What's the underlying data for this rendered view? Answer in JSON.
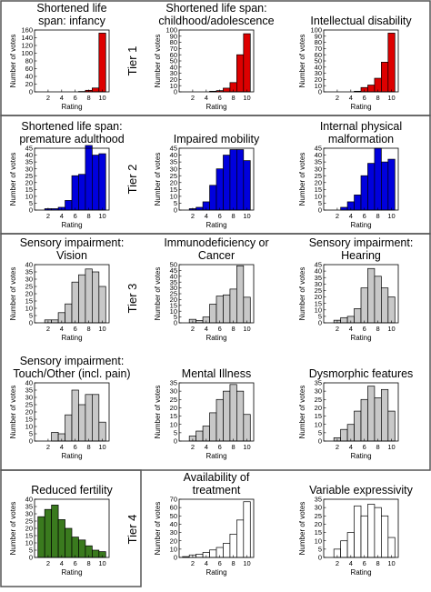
{
  "tiers": [
    "Tier 1",
    "Tier 2",
    "Tier 3",
    "Tier 4"
  ],
  "colors": {
    "tier1": "#dd0000",
    "tier2": "#0000dd",
    "tier3": "#c8c8c8",
    "tier4a": "#3a7a1e",
    "tier4b": "#ffffff",
    "frame": "#555555",
    "bar_stroke": "#000000"
  },
  "chart_data": [
    {
      "type": "bar",
      "title": "Shortened life\nspan: infancy",
      "xlabel": "Rating",
      "ylabel": "Number of votes",
      "ylim": [
        0,
        160
      ],
      "yticks": [
        0,
        20,
        40,
        60,
        80,
        100,
        120,
        140,
        160
      ],
      "xticks": [
        2,
        4,
        6,
        8,
        10
      ],
      "categories": [
        1,
        2,
        3,
        4,
        5,
        6,
        7,
        8,
        9,
        10
      ],
      "values": [
        0,
        0,
        0,
        0,
        0,
        0,
        1,
        4,
        10,
        152
      ],
      "color": "tier1"
    },
    {
      "type": "bar",
      "title": "Shortened life span:\nchildhood/adolescence",
      "xlabel": "Rating",
      "ylabel": "Number of votes",
      "ylim": [
        0,
        100
      ],
      "yticks": [
        0,
        10,
        20,
        30,
        40,
        50,
        60,
        70,
        80,
        90,
        100
      ],
      "xticks": [
        2,
        4,
        6,
        8,
        10
      ],
      "categories": [
        1,
        2,
        3,
        4,
        5,
        6,
        7,
        8,
        9,
        10
      ],
      "values": [
        0,
        0,
        0,
        0,
        1,
        2,
        6,
        15,
        60,
        94
      ],
      "color": "tier1"
    },
    {
      "type": "bar",
      "title": "Intellectual disability",
      "xlabel": "Rating",
      "ylabel": "Number of votes",
      "ylim": [
        0,
        100
      ],
      "yticks": [
        0,
        10,
        20,
        30,
        40,
        50,
        60,
        70,
        80,
        90,
        100
      ],
      "xticks": [
        2,
        4,
        6,
        8,
        10
      ],
      "categories": [
        1,
        2,
        3,
        4,
        5,
        6,
        7,
        8,
        9,
        10
      ],
      "values": [
        0,
        0,
        0,
        0,
        1,
        7,
        11,
        22,
        48,
        95
      ],
      "color": "tier1"
    },
    {
      "type": "bar",
      "title": "Shortened life span:\npremature adulthood",
      "xlabel": "Rating",
      "ylabel": "Number of votes",
      "ylim": [
        0,
        45
      ],
      "yticks": [
        0,
        5,
        10,
        15,
        20,
        25,
        30,
        35,
        40,
        45
      ],
      "xticks": [
        2,
        4,
        6,
        8,
        10
      ],
      "categories": [
        1,
        2,
        3,
        4,
        5,
        6,
        7,
        8,
        9,
        10
      ],
      "values": [
        0,
        1,
        1,
        2,
        7,
        25,
        26,
        47,
        40,
        41
      ],
      "color": "tier2"
    },
    {
      "type": "bar",
      "title": "Impaired mobility",
      "xlabel": "Rating",
      "ylabel": "Number of votes",
      "ylim": [
        0,
        45
      ],
      "yticks": [
        0,
        5,
        10,
        15,
        20,
        25,
        30,
        35,
        40,
        45
      ],
      "xticks": [
        2,
        4,
        6,
        8,
        10
      ],
      "categories": [
        1,
        2,
        3,
        4,
        5,
        6,
        7,
        8,
        9,
        10
      ],
      "values": [
        0,
        1,
        2,
        6,
        18,
        30,
        40,
        44,
        44,
        36
      ],
      "color": "tier2"
    },
    {
      "type": "bar",
      "title": "Internal physical\nmalformation",
      "xlabel": "Rating",
      "ylabel": "Number of votes",
      "ylim": [
        0,
        45
      ],
      "yticks": [
        0,
        5,
        10,
        15,
        20,
        25,
        30,
        35,
        40,
        45
      ],
      "xticks": [
        2,
        4,
        6,
        8,
        10
      ],
      "categories": [
        1,
        2,
        3,
        4,
        5,
        6,
        7,
        8,
        9,
        10
      ],
      "values": [
        0,
        0,
        2,
        6,
        11,
        25,
        34,
        45,
        35,
        37
      ],
      "color": "tier2"
    },
    {
      "type": "bar",
      "title": "Sensory impairment:\nVision",
      "xlabel": "Rating",
      "ylabel": "Number of votes",
      "ylim": [
        0,
        40
      ],
      "yticks": [
        0,
        5,
        10,
        15,
        20,
        25,
        30,
        35,
        40
      ],
      "xticks": [
        2,
        4,
        6,
        8,
        10
      ],
      "categories": [
        1,
        2,
        3,
        4,
        5,
        6,
        7,
        8,
        9,
        10
      ],
      "values": [
        0,
        2,
        2,
        7,
        13,
        28,
        33,
        37,
        35,
        25
      ],
      "color": "tier3"
    },
    {
      "type": "bar",
      "title": "Immunodeficiency or\nCancer",
      "xlabel": "Rating",
      "ylabel": "Number of votes",
      "ylim": [
        0,
        50
      ],
      "yticks": [
        0,
        5,
        10,
        15,
        20,
        25,
        30,
        35,
        40,
        45,
        50
      ],
      "xticks": [
        2,
        4,
        6,
        8,
        10
      ],
      "categories": [
        1,
        2,
        3,
        4,
        5,
        6,
        7,
        8,
        9,
        10
      ],
      "values": [
        0,
        3,
        2,
        5,
        16,
        23,
        24,
        29,
        49,
        22
      ],
      "color": "tier3"
    },
    {
      "type": "bar",
      "title": "Sensory impairment:\nHearing",
      "xlabel": "Rating",
      "ylabel": "Number of votes",
      "ylim": [
        0,
        45
      ],
      "yticks": [
        0,
        5,
        10,
        15,
        20,
        25,
        30,
        35,
        40,
        45
      ],
      "xticks": [
        2,
        4,
        6,
        8,
        10
      ],
      "categories": [
        1,
        2,
        3,
        4,
        5,
        6,
        7,
        8,
        9,
        10
      ],
      "values": [
        0,
        2,
        4,
        5,
        11,
        27,
        42,
        36,
        27,
        20
      ],
      "color": "tier3"
    },
    {
      "type": "bar",
      "title": "Sensory impairment:\nTouch/Other (incl. pain)",
      "xlabel": "Rating",
      "ylabel": "Number of votes",
      "ylim": [
        0,
        40
      ],
      "yticks": [
        0,
        5,
        10,
        15,
        20,
        25,
        30,
        35,
        40
      ],
      "xticks": [
        2,
        4,
        6,
        8,
        10
      ],
      "categories": [
        1,
        2,
        3,
        4,
        5,
        6,
        7,
        8,
        9,
        10
      ],
      "values": [
        0,
        0,
        6,
        5,
        18,
        35,
        25,
        32,
        32,
        13
      ],
      "color": "tier3"
    },
    {
      "type": "bar",
      "title": "Mental Illness",
      "xlabel": "Rating",
      "ylabel": "Number of votes",
      "ylim": [
        0,
        35
      ],
      "yticks": [
        0,
        5,
        10,
        15,
        20,
        25,
        30,
        35
      ],
      "xticks": [
        2,
        4,
        6,
        8,
        10
      ],
      "categories": [
        1,
        2,
        3,
        4,
        5,
        6,
        7,
        8,
        9,
        10
      ],
      "values": [
        0,
        3,
        6,
        9,
        17,
        25,
        30,
        34,
        30,
        16
      ],
      "color": "tier3"
    },
    {
      "type": "bar",
      "title": "Dysmorphic features",
      "xlabel": "Rating",
      "ylabel": "Number of votes",
      "ylim": [
        0,
        35
      ],
      "yticks": [
        0,
        5,
        10,
        15,
        20,
        25,
        30,
        35
      ],
      "xticks": [
        2,
        4,
        6,
        8,
        10
      ],
      "categories": [
        1,
        2,
        3,
        4,
        5,
        6,
        7,
        8,
        9,
        10
      ],
      "values": [
        0,
        2,
        7,
        10,
        18,
        25,
        33,
        26,
        31,
        18
      ],
      "color": "tier3"
    },
    {
      "type": "bar",
      "title": "Reduced fertility",
      "xlabel": "Rating",
      "ylabel": "Number of votes",
      "ylim": [
        0,
        40
      ],
      "yticks": [
        0,
        5,
        10,
        15,
        20,
        25,
        30,
        35,
        40
      ],
      "xticks": [
        2,
        4,
        6,
        8,
        10
      ],
      "categories": [
        1,
        2,
        3,
        4,
        5,
        6,
        7,
        8,
        9,
        10
      ],
      "values": [
        28,
        33,
        36,
        26,
        20,
        14,
        12,
        8,
        5,
        4
      ],
      "color": "tier4a"
    },
    {
      "type": "bar",
      "title": "Availability of\ntreatment",
      "xlabel": "Rating",
      "ylabel": "Number of votes",
      "ylim": [
        0,
        70
      ],
      "yticks": [
        0,
        10,
        20,
        30,
        40,
        50,
        60,
        70
      ],
      "xticks": [
        2,
        4,
        6,
        8,
        10
      ],
      "categories": [
        1,
        2,
        3,
        4,
        5,
        6,
        7,
        8,
        9,
        10
      ],
      "values": [
        1,
        3,
        4,
        6,
        9,
        12,
        17,
        28,
        45,
        67
      ],
      "color": "tier4b"
    },
    {
      "type": "bar",
      "title": "Variable expressivity",
      "xlabel": "Rating",
      "ylabel": "Number of votes",
      "ylim": [
        0,
        35
      ],
      "yticks": [
        0,
        5,
        10,
        15,
        20,
        25,
        30,
        35
      ],
      "xticks": [
        2,
        4,
        6,
        8,
        10
      ],
      "categories": [
        1,
        2,
        3,
        4,
        5,
        6,
        7,
        8,
        9,
        10
      ],
      "values": [
        0,
        5,
        10,
        15,
        31,
        25,
        32,
        30,
        25,
        12
      ],
      "color": "tier4b"
    }
  ]
}
